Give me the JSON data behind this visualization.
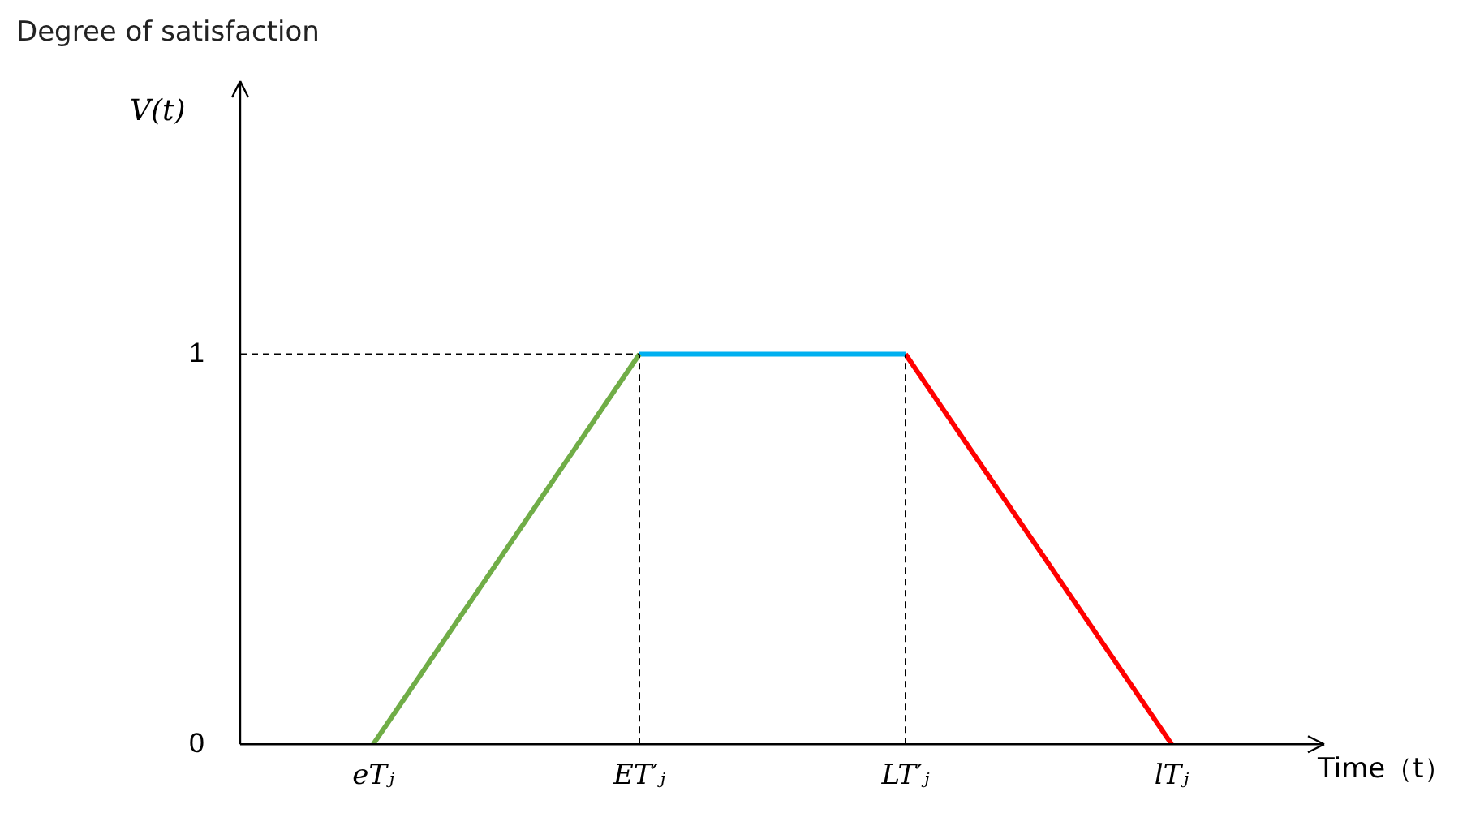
{
  "chart_data": {
    "type": "line",
    "title": "Degree of  satisfaction",
    "ylabel": "V(t)",
    "xlabel": "Time（t）",
    "categories": [
      "eTⱼ",
      "ET′ⱼ",
      "LT′ⱼ",
      "lTⱼ"
    ],
    "series": [
      {
        "color": "#70ad47",
        "values": [
          0,
          1,
          null,
          null
        ]
      },
      {
        "color": "#00b0f0",
        "values": [
          null,
          1,
          1,
          null
        ]
      },
      {
        "color": "#ff0000",
        "values": [
          null,
          null,
          1,
          0
        ]
      }
    ],
    "ylim": [
      0,
      1.7
    ],
    "yticks": [
      0,
      1
    ],
    "grid": false,
    "legend": false,
    "marker": "none",
    "line_style": "solid",
    "ref_lines": [
      {
        "axis": "y",
        "value": 1,
        "line_style": "dashed",
        "color": "#000000"
      },
      {
        "axis": "x",
        "value": "ET′ⱼ",
        "line_style": "dashed",
        "color": "#000000"
      },
      {
        "axis": "x",
        "value": "LT′ⱼ",
        "line_style": "dashed",
        "color": "#000000"
      }
    ]
  }
}
